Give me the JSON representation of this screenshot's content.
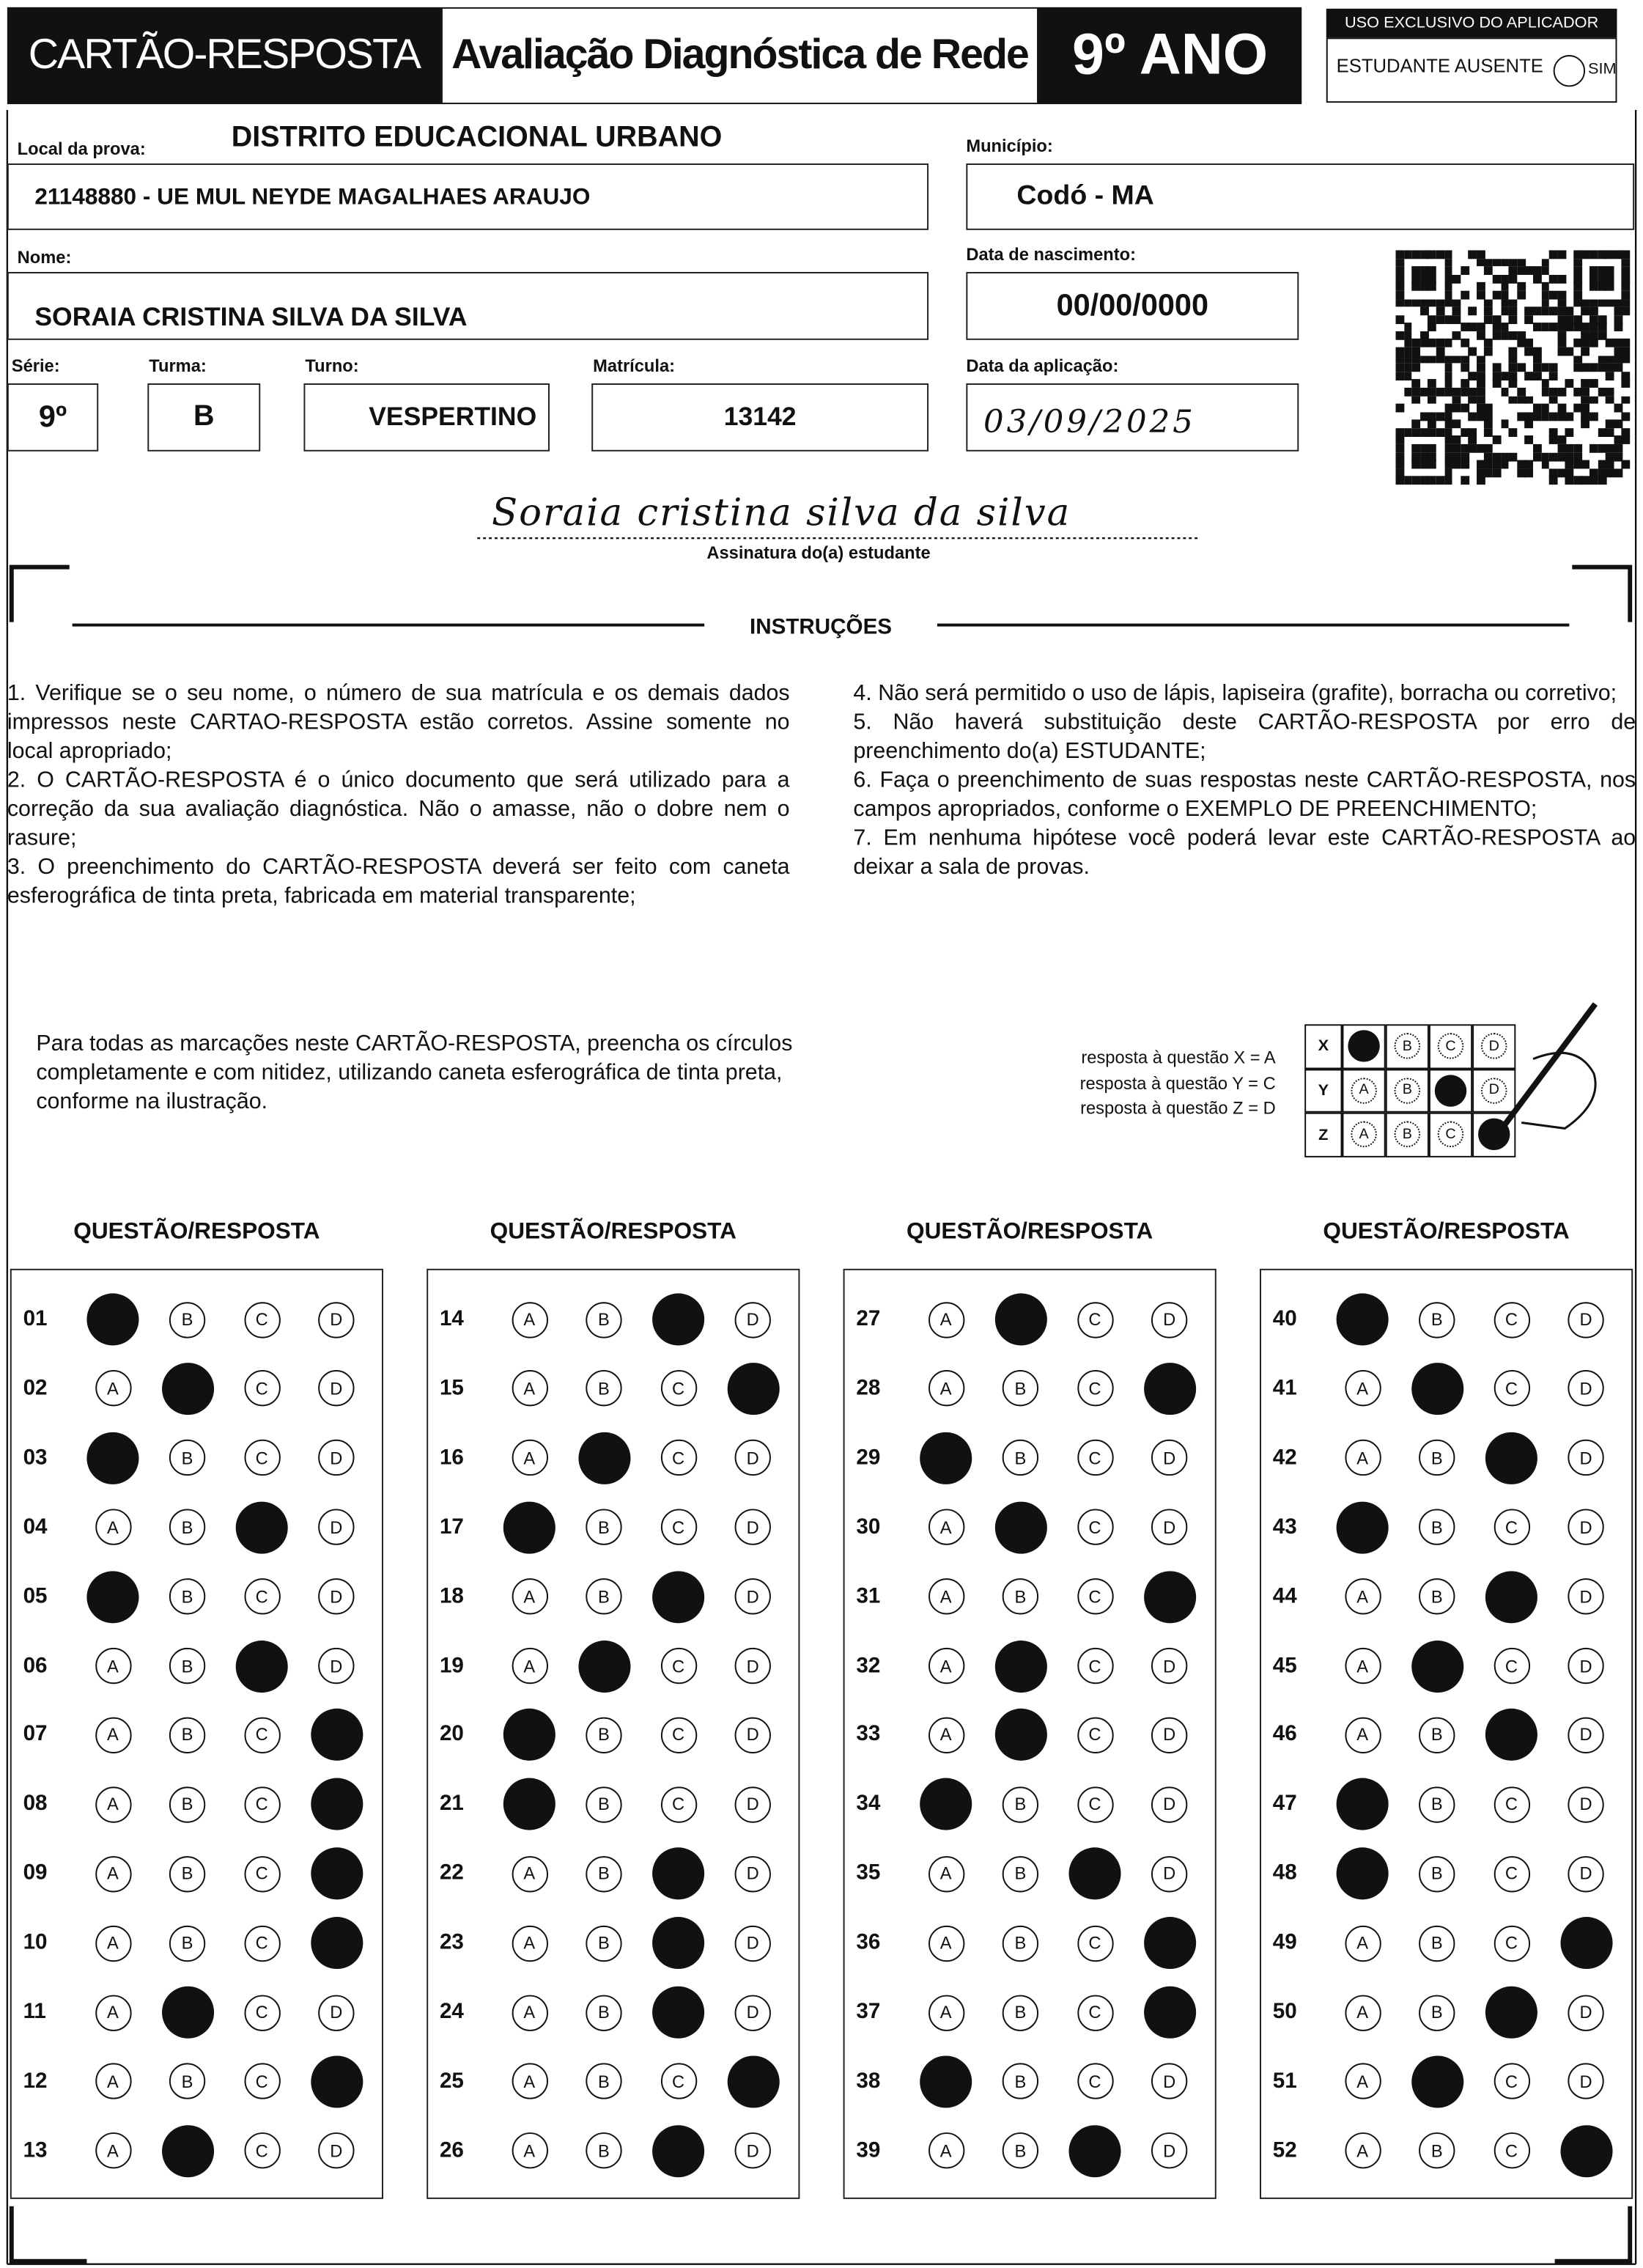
{
  "header": {
    "title": "CARTÃO-RESPOSTA",
    "subtitle": "Avaliação Diagnóstica de Rede",
    "grade": "9º ANO",
    "applicator_label": "USO EXCLUSIVO DO APLICADOR",
    "absent_label": "ESTUDANTE AUSENTE",
    "absent_option": "SIM"
  },
  "fields": {
    "exam_location": {
      "label": "Local da prova:",
      "district": "DISTRITO EDUCACIONAL URBANO",
      "value": "21148880 - UE MUL NEYDE MAGALHAES ARAUJO"
    },
    "municipality": {
      "label": "Município:",
      "value": "Codó - MA"
    },
    "name": {
      "label": "Nome:",
      "value": "SORAIA CRISTINA SILVA DA SILVA"
    },
    "birth_date": {
      "label": "Data de nascimento:",
      "value": "00/00/0000"
    },
    "grade": {
      "label": "Série:",
      "value": "9º"
    },
    "class": {
      "label": "Turma:",
      "value": "B"
    },
    "shift": {
      "label": "Turno:",
      "value": "VESPERTINO"
    },
    "registration": {
      "label": "Matrícula:",
      "value": "13142"
    },
    "application_date": {
      "label": "Data da aplicação:",
      "value": "03/09/2025"
    }
  },
  "signature": {
    "handwriting": "Soraia cristina silva da silva",
    "label": "Assinatura do(a) estudante"
  },
  "instructions": {
    "title": "INSTRUÇÕES",
    "items": [
      "1. Verifique se o seu nome, o número de sua matrícula e os demais dados impressos neste CARTAO-RESPOSTA estão corretos. Assine somente no local apropriado;",
      "2. O CARTÃO-RESPOSTA é o único documento que será utilizado para a correção da sua avaliação diagnóstica. Não o amasse, não o dobre nem o rasure;",
      "3. O preenchimento do CARTÃO-RESPOSTA deverá ser feito com caneta esferográfica de tinta preta, fabricada em material transparente;",
      "4. Não será permitido o uso de lápis, lapiseira (grafite), borracha ou corretivo;",
      "5. Não haverá substituição deste CARTÃO-RESPOSTA por erro de preenchimento do(a) ESTUDANTE;",
      "6. Faça o preenchimento de suas respostas neste CARTÃO-RESPOSTA, nos campos apropriados, conforme o EXEMPLO DE PREENCHIMENTO;",
      "7. Em nenhuma hipótese você poderá levar este CARTÃO-RESPOSTA ao deixar a sala de provas."
    ]
  },
  "guidance": {
    "text": "Para todas as marcações neste CARTÃO-RESPOSTA, preencha os círculos completamente e com nitidez, utilizando caneta esferográfica de tinta preta, conforme na ilustração.",
    "example": [
      {
        "label": "resposta à questão X = A",
        "question": "X",
        "marked": "A"
      },
      {
        "label": "resposta à questão Y = C",
        "question": "Y",
        "marked": "C"
      },
      {
        "label": "resposta à questão Z = D",
        "question": "Z",
        "marked": "D"
      }
    ]
  },
  "answer_grid": {
    "column_title": "QUESTÃO/RESPOSTA",
    "options": [
      "A",
      "B",
      "C",
      "D"
    ],
    "columns": [
      [
        {
          "number": "01",
          "marked": "A"
        },
        {
          "number": "02",
          "marked": "B"
        },
        {
          "number": "03",
          "marked": "A"
        },
        {
          "number": "04",
          "marked": "C"
        },
        {
          "number": "05",
          "marked": "A"
        },
        {
          "number": "06",
          "marked": "C"
        },
        {
          "number": "07",
          "marked": "D"
        },
        {
          "number": "08",
          "marked": "D"
        },
        {
          "number": "09",
          "marked": "D"
        },
        {
          "number": "10",
          "marked": "D"
        },
        {
          "number": "11",
          "marked": "B"
        },
        {
          "number": "12",
          "marked": "D"
        },
        {
          "number": "13",
          "marked": "B"
        }
      ],
      [
        {
          "number": "14",
          "marked": "C"
        },
        {
          "number": "15",
          "marked": "D"
        },
        {
          "number": "16",
          "marked": "B"
        },
        {
          "number": "17",
          "marked": "A"
        },
        {
          "number": "18",
          "marked": "C"
        },
        {
          "number": "19",
          "marked": "B"
        },
        {
          "number": "20",
          "marked": "A"
        },
        {
          "number": "21",
          "marked": "A"
        },
        {
          "number": "22",
          "marked": "C"
        },
        {
          "number": "23",
          "marked": "C"
        },
        {
          "number": "24",
          "marked": "C"
        },
        {
          "number": "25",
          "marked": "D"
        },
        {
          "number": "26",
          "marked": "C"
        }
      ],
      [
        {
          "number": "27",
          "marked": "B"
        },
        {
          "number": "28",
          "marked": "D"
        },
        {
          "number": "29",
          "marked": "A"
        },
        {
          "number": "30",
          "marked": "B"
        },
        {
          "number": "31",
          "marked": "D"
        },
        {
          "number": "32",
          "marked": "B"
        },
        {
          "number": "33",
          "marked": "B"
        },
        {
          "number": "34",
          "marked": "A"
        },
        {
          "number": "35",
          "marked": "C"
        },
        {
          "number": "36",
          "marked": "D"
        },
        {
          "number": "37",
          "marked": "D"
        },
        {
          "number": "38",
          "marked": "A"
        },
        {
          "number": "39",
          "marked": "C"
        }
      ],
      [
        {
          "number": "40",
          "marked": "A"
        },
        {
          "number": "41",
          "marked": "B"
        },
        {
          "number": "42",
          "marked": "C"
        },
        {
          "number": "43",
          "marked": "A"
        },
        {
          "number": "44",
          "marked": "C"
        },
        {
          "number": "45",
          "marked": "B"
        },
        {
          "number": "46",
          "marked": "C"
        },
        {
          "number": "47",
          "marked": "A"
        },
        {
          "number": "48",
          "marked": "A"
        },
        {
          "number": "49",
          "marked": "D"
        },
        {
          "number": "50",
          "marked": "C"
        },
        {
          "number": "51",
          "marked": "B"
        },
        {
          "number": "52",
          "marked": "D"
        }
      ]
    ]
  }
}
